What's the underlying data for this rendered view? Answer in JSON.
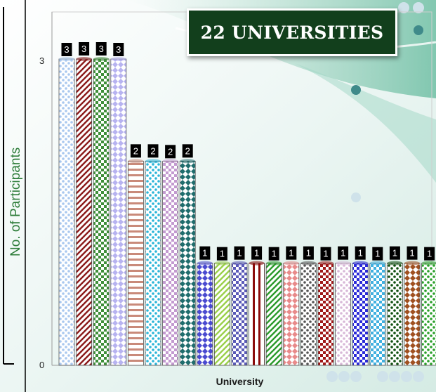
{
  "title_badge": "22 UNIVERSITIES",
  "chart_data": {
    "type": "bar",
    "title": "22 UNIVERSITIES",
    "xlabel": "University",
    "ylabel": "No. of  Participants",
    "ylim": [
      0,
      3.3
    ],
    "yticks": [
      0,
      3
    ],
    "grid": false,
    "categories": [
      "",
      "",
      "",
      "",
      "",
      "",
      "",
      "",
      "",
      "",
      "",
      "",
      "",
      "",
      "",
      "",
      "",
      "",
      "",
      "",
      "",
      ""
    ],
    "values": [
      3,
      3,
      3,
      3,
      2,
      2,
      2,
      2,
      1,
      1,
      1,
      1,
      1,
      1,
      1,
      1,
      1,
      1,
      1,
      1,
      1,
      1
    ],
    "data_labels": [
      "3",
      "3",
      "3",
      "3",
      "2",
      "2",
      "2",
      "2",
      "1",
      "1",
      "1",
      "1",
      "1",
      "1",
      "1",
      "1",
      "1",
      "1",
      "1",
      "1",
      "1",
      "1"
    ],
    "bar_colors": [
      "#a9c8ef",
      "#8b1a1a",
      "#3f8f3a",
      "#b7b3f0",
      "#c98a7a",
      "#2bb5d8",
      "#c39ad0",
      "#1f6d6d",
      "#4a4ad0",
      "#9ad04a",
      "#5a5ab8",
      "#8b0a0a",
      "#2a9a2a",
      "#e88a8a",
      "#555555",
      "#a01818",
      "#d8b8d8",
      "#2a2ad8",
      "#40b0e0",
      "#0f4f0f",
      "#a05020",
      "#2aa02a"
    ]
  }
}
